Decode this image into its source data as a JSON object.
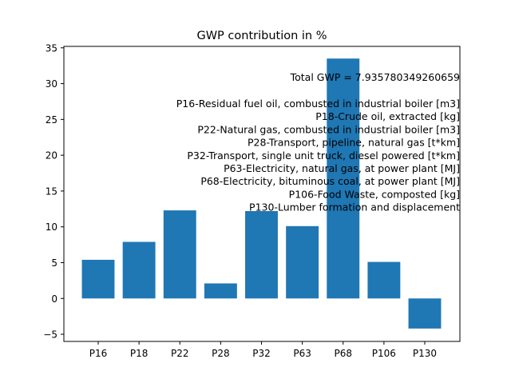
{
  "chart_data": {
    "type": "bar",
    "title": "GWP contribution in %",
    "xlabel": "",
    "ylabel": "",
    "categories": [
      "P16",
      "P18",
      "P22",
      "P28",
      "P32",
      "P63",
      "P68",
      "P106",
      "P130"
    ],
    "values": [
      5.4,
      7.9,
      12.3,
      2.1,
      12.2,
      10.1,
      33.5,
      5.1,
      -4.2
    ],
    "ylim": [
      -6,
      35.2
    ],
    "yticks": [
      -5,
      0,
      5,
      10,
      15,
      20,
      25,
      30,
      35
    ],
    "grid": false,
    "bar_color": "#1f77b4",
    "annotations": {
      "total": "Total GWP = 7.935780349260659",
      "lines": [
        "P16-Residual fuel oil, combusted in industrial boiler [m3]",
        "P18-Crude oil, extracted [kg]",
        "P22-Natural gas, combusted in industrial boiler [m3]",
        "P28-Transport, pipeline, natural gas [t*km]",
        "P32-Transport, single unit truck, diesel powered [t*km]",
        "P63-Electricity, natural gas, at power plant [MJ]",
        "P68-Electricity, bituminous coal, at power plant [MJ]",
        "P106-Food Waste, composted [kg]",
        "P130-Lumber formation and displacement"
      ]
    }
  }
}
